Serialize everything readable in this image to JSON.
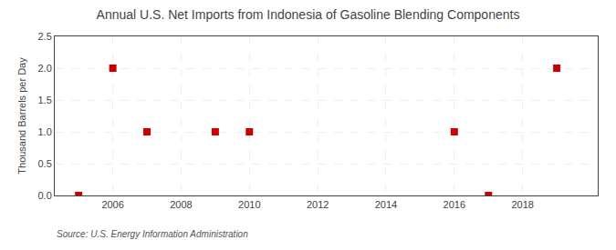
{
  "chart_data": {
    "type": "scatter",
    "title": "Annual U.S. Net Imports from Indonesia of Gasoline Blending Components",
    "ylabel": "Thousand Barrels per Day",
    "annotations": [
      "Source: U.S. Energy Information Administration"
    ],
    "x": [
      2005,
      2006,
      2007,
      2009,
      2010,
      2016,
      2017,
      2019
    ],
    "values": [
      0.0,
      2.0,
      1.0,
      1.0,
      1.0,
      1.0,
      0.0,
      2.0
    ],
    "color": "#cc0000",
    "marker": "square",
    "xlim": [
      2004.3,
      2020.2
    ],
    "xticks": [
      2006,
      2008,
      2010,
      2012,
      2014,
      2016,
      2018
    ],
    "ylim": [
      0,
      2.5
    ],
    "yticks": [
      {
        "value": 0,
        "label": "0.0"
      },
      0.5,
      {
        "value": 1,
        "label": "1.0"
      },
      1.5,
      {
        "value": 2,
        "label": "2.0"
      },
      2.5
    ],
    "grid": true
  }
}
